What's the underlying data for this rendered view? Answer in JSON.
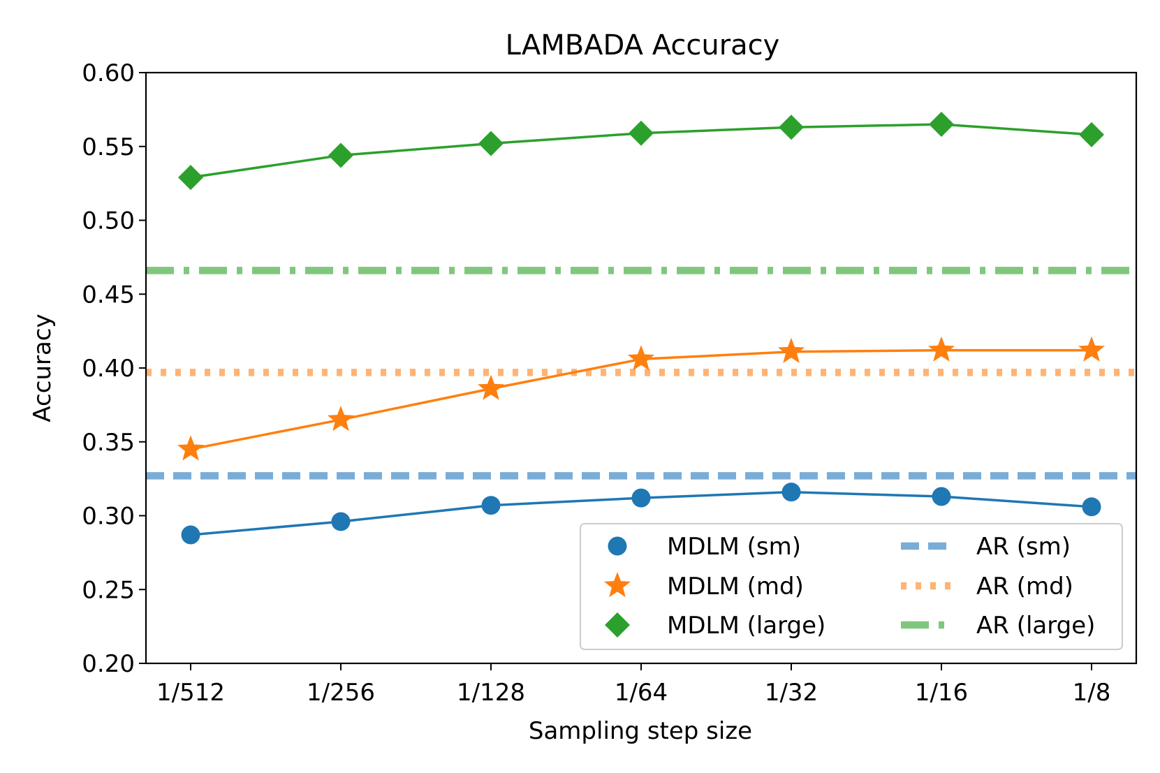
{
  "chart_data": {
    "type": "line",
    "title": "LAMBADA Accuracy",
    "xlabel": "Sampling step size",
    "ylabel": "Accuracy",
    "categories": [
      "1/512",
      "1/256",
      "1/128",
      "1/64",
      "1/32",
      "1/16",
      "1/8"
    ],
    "ylim": [
      0.2,
      0.6
    ],
    "yticks": [
      0.2,
      0.25,
      0.3,
      0.35,
      0.4,
      0.45,
      0.5,
      0.55,
      0.6
    ],
    "ytick_labels": [
      "0.20",
      "0.25",
      "0.30",
      "0.35",
      "0.40",
      "0.45",
      "0.50",
      "0.55",
      "0.60"
    ],
    "grid": false,
    "legend_position": "lower-right",
    "series": [
      {
        "name": "MDLM (sm)",
        "color": "#1f77b4",
        "marker": "circle",
        "values": [
          0.287,
          0.296,
          0.307,
          0.312,
          0.316,
          0.313,
          0.306
        ]
      },
      {
        "name": "MDLM (md)",
        "color": "#ff7f0e",
        "marker": "star",
        "values": [
          0.345,
          0.365,
          0.386,
          0.406,
          0.411,
          0.412,
          0.412
        ]
      },
      {
        "name": "MDLM (large)",
        "color": "#2ca02c",
        "marker": "diamond",
        "values": [
          0.529,
          0.544,
          0.552,
          0.559,
          0.563,
          0.565,
          0.558
        ]
      }
    ],
    "reference_lines": [
      {
        "name": "AR (sm)",
        "color": "#7aadd6",
        "style": "dashed",
        "value": 0.327
      },
      {
        "name": "AR (md)",
        "color": "#ffb374",
        "style": "dotted",
        "value": 0.397
      },
      {
        "name": "AR (large)",
        "color": "#7fc77c",
        "style": "dashdot",
        "value": 0.466
      }
    ]
  }
}
